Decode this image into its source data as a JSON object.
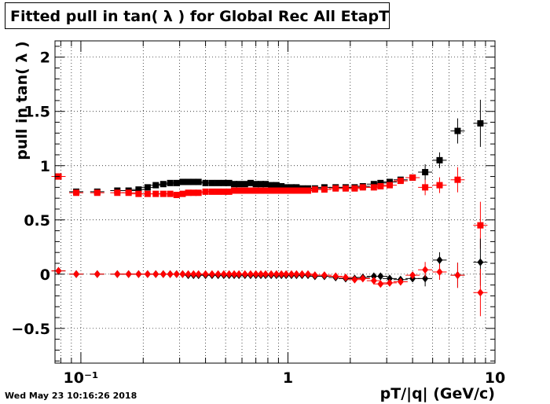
{
  "title": "Fitted pull in tan( λ ) for Global Rec All EtapT",
  "timestamp": "Wed May 23 10:16:26 2018",
  "chart_data": {
    "type": "scatter",
    "title": "Fitted pull in tan( λ ) for Global Rec All EtapT",
    "xlabel": "pT/|q| (GeV/c)",
    "ylabel": "pull in tan( λ )",
    "x_scale": "log",
    "xlim": [
      0.075,
      10
    ],
    "ylim": [
      -0.82,
      2.15
    ],
    "grid": true,
    "x_tick_labels": [
      "10⁻¹",
      "1",
      "10"
    ],
    "y_tick_labels": [
      "−0.5",
      "0",
      "0.5",
      "1",
      "1.5",
      "2"
    ],
    "y_ticks": [
      -0.5,
      0,
      0.5,
      1,
      1.5,
      2
    ],
    "series": [
      {
        "marker": "square",
        "color": "#000000",
        "points": [
          [
            0.078,
            0.9
          ],
          [
            0.095,
            0.76
          ],
          [
            0.12,
            0.76
          ],
          [
            0.15,
            0.77
          ],
          [
            0.17,
            0.77
          ],
          [
            0.19,
            0.78
          ],
          [
            0.21,
            0.8
          ],
          [
            0.23,
            0.82
          ],
          [
            0.25,
            0.83
          ],
          [
            0.27,
            0.84
          ],
          [
            0.29,
            0.84
          ],
          [
            0.31,
            0.85
          ],
          [
            0.33,
            0.85
          ],
          [
            0.35,
            0.85
          ],
          [
            0.37,
            0.85
          ],
          [
            0.4,
            0.84
          ],
          [
            0.43,
            0.84
          ],
          [
            0.46,
            0.84
          ],
          [
            0.49,
            0.84
          ],
          [
            0.52,
            0.84
          ],
          [
            0.55,
            0.83
          ],
          [
            0.58,
            0.83
          ],
          [
            0.62,
            0.83
          ],
          [
            0.66,
            0.84
          ],
          [
            0.7,
            0.83
          ],
          [
            0.74,
            0.83
          ],
          [
            0.78,
            0.83
          ],
          [
            0.83,
            0.82
          ],
          [
            0.88,
            0.82
          ],
          [
            0.93,
            0.81
          ],
          [
            0.98,
            0.8
          ],
          [
            1.04,
            0.8
          ],
          [
            1.1,
            0.8
          ],
          [
            1.17,
            0.79
          ],
          [
            1.25,
            0.79
          ],
          [
            1.35,
            0.79
          ],
          [
            1.5,
            0.8
          ],
          [
            1.7,
            0.8
          ],
          [
            1.9,
            0.8
          ],
          [
            2.1,
            0.8
          ],
          [
            2.3,
            0.81
          ],
          [
            2.6,
            0.83
          ],
          [
            2.8,
            0.84
          ],
          [
            3.1,
            0.85
          ],
          [
            3.5,
            0.87
          ],
          [
            4.0,
            0.89
          ],
          [
            4.6,
            0.94
          ],
          [
            5.4,
            1.05
          ],
          [
            6.6,
            1.32
          ],
          [
            8.5,
            1.39
          ]
        ]
      },
      {
        "marker": "square",
        "color": "#ff0000",
        "points": [
          [
            0.078,
            0.9
          ],
          [
            0.095,
            0.75
          ],
          [
            0.12,
            0.75
          ],
          [
            0.15,
            0.75
          ],
          [
            0.17,
            0.75
          ],
          [
            0.19,
            0.74
          ],
          [
            0.21,
            0.74
          ],
          [
            0.23,
            0.74
          ],
          [
            0.25,
            0.74
          ],
          [
            0.27,
            0.74
          ],
          [
            0.29,
            0.73
          ],
          [
            0.31,
            0.74
          ],
          [
            0.33,
            0.75
          ],
          [
            0.35,
            0.75
          ],
          [
            0.37,
            0.75
          ],
          [
            0.4,
            0.76
          ],
          [
            0.43,
            0.76
          ],
          [
            0.46,
            0.76
          ],
          [
            0.49,
            0.76
          ],
          [
            0.52,
            0.76
          ],
          [
            0.55,
            0.77
          ],
          [
            0.58,
            0.77
          ],
          [
            0.62,
            0.77
          ],
          [
            0.66,
            0.77
          ],
          [
            0.7,
            0.77
          ],
          [
            0.74,
            0.77
          ],
          [
            0.78,
            0.77
          ],
          [
            0.83,
            0.77
          ],
          [
            0.88,
            0.77
          ],
          [
            0.93,
            0.77
          ],
          [
            0.98,
            0.77
          ],
          [
            1.04,
            0.77
          ],
          [
            1.1,
            0.77
          ],
          [
            1.17,
            0.77
          ],
          [
            1.25,
            0.77
          ],
          [
            1.35,
            0.78
          ],
          [
            1.5,
            0.78
          ],
          [
            1.7,
            0.79
          ],
          [
            1.9,
            0.79
          ],
          [
            2.1,
            0.79
          ],
          [
            2.3,
            0.8
          ],
          [
            2.6,
            0.8
          ],
          [
            2.8,
            0.81
          ],
          [
            3.1,
            0.82
          ],
          [
            3.5,
            0.86
          ],
          [
            4.0,
            0.89
          ],
          [
            4.6,
            0.8
          ],
          [
            5.4,
            0.82
          ],
          [
            6.6,
            0.87
          ],
          [
            8.5,
            0.45
          ]
        ]
      },
      {
        "marker": "diamond",
        "color": "#000000",
        "points": [
          [
            0.078,
            0.03
          ],
          [
            0.095,
            0.0
          ],
          [
            0.12,
            0.0
          ],
          [
            0.15,
            0.0
          ],
          [
            0.17,
            0.0
          ],
          [
            0.19,
            0.0
          ],
          [
            0.21,
            0.0
          ],
          [
            0.23,
            0.0
          ],
          [
            0.25,
            0.0
          ],
          [
            0.27,
            0.0
          ],
          [
            0.29,
            0.0
          ],
          [
            0.31,
            0.0
          ],
          [
            0.33,
            -0.01
          ],
          [
            0.35,
            -0.01
          ],
          [
            0.37,
            -0.01
          ],
          [
            0.4,
            -0.01
          ],
          [
            0.43,
            -0.01
          ],
          [
            0.46,
            -0.01
          ],
          [
            0.49,
            -0.01
          ],
          [
            0.52,
            -0.01
          ],
          [
            0.55,
            -0.01
          ],
          [
            0.58,
            -0.01
          ],
          [
            0.62,
            -0.01
          ],
          [
            0.66,
            -0.01
          ],
          [
            0.7,
            -0.01
          ],
          [
            0.74,
            -0.01
          ],
          [
            0.78,
            -0.01
          ],
          [
            0.83,
            -0.01
          ],
          [
            0.88,
            -0.01
          ],
          [
            0.93,
            -0.01
          ],
          [
            0.98,
            -0.01
          ],
          [
            1.04,
            -0.01
          ],
          [
            1.1,
            -0.01
          ],
          [
            1.17,
            -0.01
          ],
          [
            1.25,
            -0.01
          ],
          [
            1.35,
            -0.02
          ],
          [
            1.5,
            -0.02
          ],
          [
            1.7,
            -0.03
          ],
          [
            1.9,
            -0.04
          ],
          [
            2.1,
            -0.04
          ],
          [
            2.3,
            -0.03
          ],
          [
            2.6,
            -0.02
          ],
          [
            2.8,
            -0.02
          ],
          [
            3.1,
            -0.04
          ],
          [
            3.5,
            -0.05
          ],
          [
            4.0,
            -0.04
          ],
          [
            4.6,
            -0.04
          ],
          [
            5.4,
            0.13
          ],
          [
            6.6,
            -0.01
          ],
          [
            8.5,
            0.11
          ]
        ]
      },
      {
        "marker": "diamond",
        "color": "#ff0000",
        "points": [
          [
            0.078,
            0.03
          ],
          [
            0.095,
            0.0
          ],
          [
            0.12,
            0.0
          ],
          [
            0.15,
            0.0
          ],
          [
            0.17,
            0.0
          ],
          [
            0.19,
            0.0
          ],
          [
            0.21,
            0.0
          ],
          [
            0.23,
            0.0
          ],
          [
            0.25,
            0.0
          ],
          [
            0.27,
            0.0
          ],
          [
            0.29,
            0.0
          ],
          [
            0.31,
            0.0
          ],
          [
            0.33,
            0.0
          ],
          [
            0.35,
            0.0
          ],
          [
            0.37,
            0.0
          ],
          [
            0.4,
            0.0
          ],
          [
            0.43,
            0.0
          ],
          [
            0.46,
            0.0
          ],
          [
            0.49,
            0.0
          ],
          [
            0.52,
            0.0
          ],
          [
            0.55,
            0.0
          ],
          [
            0.58,
            0.0
          ],
          [
            0.62,
            0.0
          ],
          [
            0.66,
            0.0
          ],
          [
            0.7,
            0.0
          ],
          [
            0.74,
            0.0
          ],
          [
            0.78,
            0.0
          ],
          [
            0.83,
            0.0
          ],
          [
            0.88,
            0.0
          ],
          [
            0.93,
            0.0
          ],
          [
            0.98,
            0.0
          ],
          [
            1.04,
            0.0
          ],
          [
            1.1,
            0.0
          ],
          [
            1.17,
            0.0
          ],
          [
            1.25,
            0.0
          ],
          [
            1.35,
            -0.01
          ],
          [
            1.5,
            -0.01
          ],
          [
            1.7,
            -0.02
          ],
          [
            1.9,
            -0.03
          ],
          [
            2.1,
            -0.05
          ],
          [
            2.3,
            -0.04
          ],
          [
            2.6,
            -0.06
          ],
          [
            2.8,
            -0.09
          ],
          [
            3.1,
            -0.08
          ],
          [
            3.5,
            -0.07
          ],
          [
            4.0,
            -0.01
          ],
          [
            4.6,
            0.04
          ],
          [
            5.4,
            0.02
          ],
          [
            6.6,
            -0.01
          ],
          [
            8.5,
            -0.17
          ]
        ]
      }
    ]
  }
}
